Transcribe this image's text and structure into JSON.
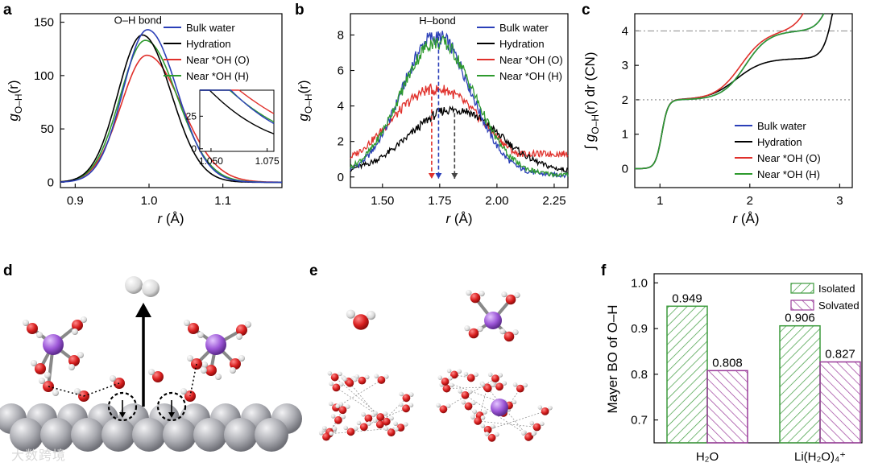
{
  "panel_letters": [
    "a",
    "b",
    "c",
    "d",
    "e",
    "f"
  ],
  "chart_data": [
    {
      "id": "a",
      "type": "line",
      "annotation": "O–H bond",
      "xlabel_var": "r",
      "xlabel_unit": " (Å)",
      "ylabel_main": "g",
      "ylabel_sub": "O–H",
      "ylabel_tail": "(r)",
      "xlim": [
        0.88,
        1.18
      ],
      "ylim": [
        -5,
        158
      ],
      "xticks": [
        "0.9",
        "1.0",
        "1.1"
      ],
      "xtick_values": [
        0.9,
        1.0,
        1.1
      ],
      "yticks": [
        "0",
        "50",
        "100",
        "150"
      ],
      "ytick_values": [
        0,
        50,
        100,
        150
      ],
      "series": [
        {
          "name": "Bulk water",
          "color": "#2b3fb8",
          "peak_x": 0.998,
          "peak_y": 143,
          "sl": 0.033,
          "sr": 0.04
        },
        {
          "name": "Hydration",
          "color": "#000000",
          "peak_x": 0.991,
          "peak_y": 138,
          "sl": 0.033,
          "sr": 0.039
        },
        {
          "name": "Near *OH (O)",
          "color": "#e0302b",
          "peak_x": 0.997,
          "peak_y": 119,
          "sl": 0.035,
          "sr": 0.047
        },
        {
          "name": "Near *OH (H)",
          "color": "#2e9a2e",
          "peak_x": 0.995,
          "peak_y": 133,
          "sl": 0.034,
          "sr": 0.043
        }
      ],
      "inset": {
        "xlim": [
          1.045,
          1.078
        ],
        "ylim": [
          -2,
          45
        ],
        "xticks": [
          "1.050",
          "1.075"
        ],
        "xtick_values": [
          1.05,
          1.075
        ],
        "yticks": [
          "0",
          "25"
        ],
        "ytick_values": [
          0,
          25
        ]
      }
    },
    {
      "id": "b",
      "type": "line",
      "annotation": "H–bond",
      "xlabel_var": "r",
      "xlabel_unit": " (Å)",
      "ylabel_main": "g",
      "ylabel_sub": "O–H",
      "ylabel_tail": "(r)",
      "xlim": [
        1.36,
        2.31
      ],
      "ylim": [
        -0.6,
        9.2
      ],
      "xticks": [
        "1.50",
        "1.75",
        "2.00",
        "2.25"
      ],
      "xtick_values": [
        1.5,
        1.75,
        2.0,
        2.25
      ],
      "yticks": [
        "0",
        "2",
        "4",
        "6",
        "8"
      ],
      "ytick_values": [
        0,
        2,
        4,
        6,
        8
      ],
      "series": [
        {
          "name": "Bulk water",
          "color": "#2b3fb8",
          "peak_x": 1.735,
          "peak_y": 7.9,
          "width": 0.15,
          "floor": 0.1,
          "tail": 0.0
        },
        {
          "name": "Hydration",
          "color": "#000000",
          "peak_x": 1.815,
          "peak_y": 3.6,
          "width": 0.19,
          "floor": 0.25,
          "tail": 0.3
        },
        {
          "name": "Near *OH (O)",
          "color": "#e0302b",
          "peak_x": 1.735,
          "peak_y": 4.7,
          "width": 0.2,
          "floor": 0.3,
          "tail": 1.3
        },
        {
          "name": "Near *OH (H)",
          "color": "#2e9a2e",
          "peak_x": 1.74,
          "peak_y": 7.6,
          "width": 0.16,
          "floor": 0.1,
          "tail": 0.0
        }
      ],
      "arrows": [
        {
          "x": 1.715,
          "y": 4.9,
          "color": "#e0302b"
        },
        {
          "x": 1.745,
          "y": 7.9,
          "color": "#2b3fb8"
        },
        {
          "x": 1.815,
          "y": 3.6,
          "color": "#444444"
        }
      ]
    },
    {
      "id": "c",
      "type": "line",
      "xlabel_var": "r",
      "xlabel_unit": " (Å)",
      "ylabel_text": "∫ g",
      "ylabel_sub": "O–H",
      "ylabel_tail": "(r) dr (CN)",
      "xlim": [
        0.72,
        3.14
      ],
      "ylim": [
        -0.55,
        4.5
      ],
      "xticks": [
        "1",
        "2",
        "3"
      ],
      "xtick_values": [
        1,
        2,
        3
      ],
      "yticks": [
        "0",
        "1",
        "2",
        "3",
        "4"
      ],
      "ytick_values": [
        0,
        1,
        2,
        3,
        4
      ],
      "reference_lines": [
        {
          "y": 4,
          "style": "dash-dot"
        },
        {
          "y": 2,
          "style": "dotted"
        }
      ],
      "series": [
        {
          "name": "Bulk water",
          "color": "#2b3fb8"
        },
        {
          "name": "Hydration",
          "color": "#000000"
        },
        {
          "name": "Near *OH (O)",
          "color": "#e0302b"
        },
        {
          "name": "Near *OH (H)",
          "color": "#2e9a2e"
        }
      ]
    },
    {
      "id": "f",
      "type": "bar",
      "ylabel": "Mayer BO of O–H",
      "ylim": [
        0.65,
        1.02
      ],
      "yticks": [
        "0.7",
        "0.8",
        "0.9",
        "1.0"
      ],
      "ytick_values": [
        0.7,
        0.8,
        0.9,
        1.0
      ],
      "categories": [
        "H₂O",
        "Li(H₂O)₄⁺"
      ],
      "series": [
        {
          "name": "Isolated",
          "color": "#3c9a3c",
          "values": [
            0.949,
            0.906
          ],
          "labels": [
            "0.949",
            "0.906"
          ]
        },
        {
          "name": "Solvated",
          "color": "#9a3c9a",
          "values": [
            0.808,
            0.827
          ],
          "labels": [
            "0.808",
            "0.827"
          ]
        }
      ]
    }
  ],
  "watermark": "大数跨境"
}
